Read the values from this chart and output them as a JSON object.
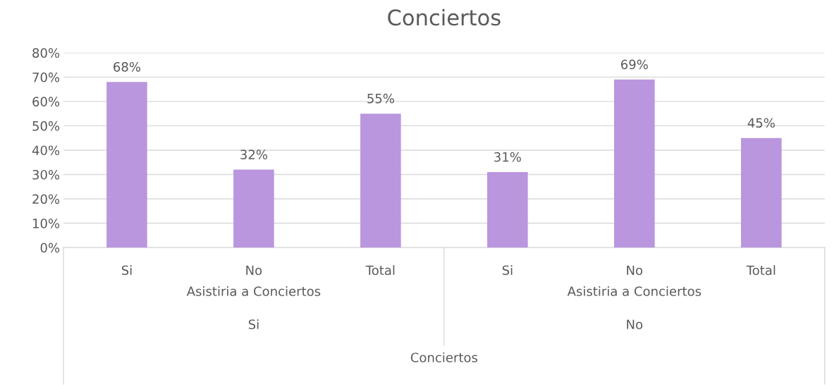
{
  "chart_data": {
    "type": "bar",
    "title": "Conciertos",
    "categories": [
      "Si",
      "No",
      "Total",
      "Si",
      "No",
      "Total"
    ],
    "values": [
      68,
      32,
      55,
      31,
      69,
      45
    ],
    "value_labels": [
      "68%",
      "32%",
      "55%",
      "31%",
      "69%",
      "45%"
    ],
    "color": "#b996de",
    "ylim": [
      0,
      80
    ],
    "yticks": [
      {
        "value": 0,
        "label": "0%"
      },
      {
        "value": 10,
        "label": "10%"
      },
      {
        "value": 20,
        "label": "20%"
      },
      {
        "value": 30,
        "label": "30%"
      },
      {
        "value": 40,
        "label": "40%"
      },
      {
        "value": 50,
        "label": "50%"
      },
      {
        "value": 60,
        "label": "60%"
      },
      {
        "value": 70,
        "label": "70%"
      },
      {
        "value": 80,
        "label": "80%"
      }
    ],
    "grid": "y",
    "annotations": [
      "Asistiria a Conciertos",
      "Asistiria a Conciertos",
      "Si",
      "No",
      "Conciertos"
    ]
  }
}
